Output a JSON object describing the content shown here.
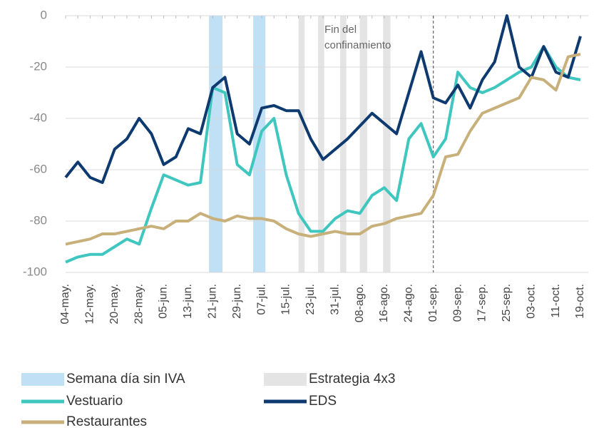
{
  "chart_data": {
    "type": "line",
    "categories": [
      "04-may.",
      null,
      "12-may.",
      null,
      "20-may.",
      null,
      "28-may.",
      null,
      "05-jun.",
      null,
      "13-jun.",
      null,
      "21-jun.",
      null,
      "29-jun.",
      null,
      "07-jul.",
      null,
      "15-jul.",
      null,
      "23-jul.",
      null,
      "31-jul.",
      null,
      "08-ago.",
      null,
      "16-ago.",
      null,
      "24-ago.",
      null,
      "01-sep.",
      null,
      "09-sep.",
      null,
      "17-sep.",
      null,
      "25-sep.",
      null,
      "03-oct.",
      null,
      "11-oct.",
      null,
      "19-oct."
    ],
    "series": [
      {
        "name": "Vestuario",
        "color": "#3fc6bf",
        "values": [
          -96,
          -94,
          -93,
          -93,
          -90,
          -87,
          -89,
          -75,
          -62,
          -64,
          -66,
          -65,
          -28,
          -30,
          -58,
          -62,
          -45,
          -40,
          -62,
          -77,
          -84,
          -84,
          -79,
          -76,
          -77,
          -70,
          -67,
          -72,
          -48,
          -42,
          -55,
          -48,
          -22,
          -28,
          -30,
          -28,
          -25,
          -22,
          -20,
          -12,
          -20,
          -24,
          -25
        ]
      },
      {
        "name": "EDS",
        "color": "#0e3a70",
        "values": [
          -63,
          -57,
          -63,
          -65,
          -52,
          -48,
          -40,
          -46,
          -58,
          -55,
          -44,
          -46,
          -28,
          -24,
          -46,
          -50,
          -36,
          -35,
          -37,
          -37,
          -48,
          -56,
          -52,
          -48,
          -43,
          -38,
          -42,
          -46,
          -30,
          -14,
          -32,
          -34,
          -27,
          -36,
          -25,
          -18,
          0,
          -20,
          -24,
          -12,
          -22,
          -24,
          -8
        ]
      },
      {
        "name": "Restaurantes",
        "color": "#c8b07a",
        "values": [
          -89,
          -88,
          -87,
          -85,
          -85,
          -84,
          -83,
          -82,
          -83,
          -80,
          -80,
          -77,
          -79,
          -80,
          -78,
          -79,
          -79,
          -80,
          -83,
          -85,
          -86,
          -85,
          -84,
          -85,
          -85,
          -82,
          -81,
          -79,
          -78,
          -77,
          -70,
          -55,
          -54,
          -45,
          -38,
          -36,
          -34,
          -32,
          -24,
          -25,
          -29,
          -16,
          -15
        ]
      }
    ],
    "bands": [
      {
        "name": "Semana día sin IVA",
        "color": "#bfe0f5",
        "ranges": [
          [
            11.7,
            12.8
          ],
          [
            15.3,
            16.3
          ]
        ]
      },
      {
        "name": "Estrategia 4x3",
        "color": "#e4e4e4",
        "ranges": [
          [
            19.0,
            19.5
          ],
          [
            20.6,
            21.1
          ],
          [
            22.4,
            22.9
          ],
          [
            24.0,
            24.6
          ],
          [
            25.9,
            26.5
          ]
        ]
      }
    ],
    "vline": {
      "x": 30,
      "label": [
        "Fin del",
        "confinamiento"
      ]
    },
    "ylim": [
      -100,
      0
    ],
    "yticks": [
      -100,
      -80,
      -60,
      -40,
      -20,
      0
    ],
    "grid": true
  }
}
